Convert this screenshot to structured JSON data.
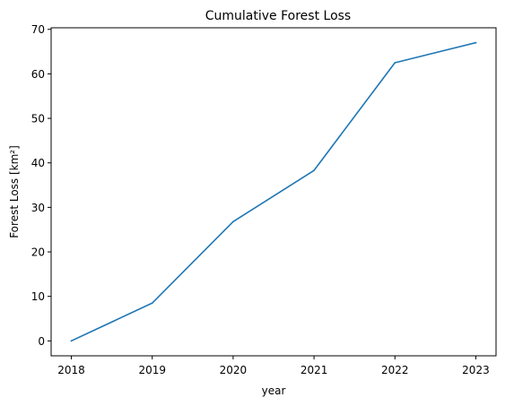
{
  "chart_data": {
    "type": "line",
    "title": "Cumulative Forest Loss",
    "xlabel": "year",
    "ylabel": "Forest Loss [km²]",
    "x": [
      2018,
      2019,
      2020,
      2021,
      2022,
      2023
    ],
    "x_ticks": [
      "2018",
      "2019",
      "2020",
      "2021",
      "2022",
      "2023"
    ],
    "y_ticks": [
      0,
      10,
      20,
      30,
      40,
      50,
      60,
      70
    ],
    "ylim": [
      -3.35,
      70.35
    ],
    "xlim": [
      2017.75,
      2023.25
    ],
    "grid": false,
    "series": [
      {
        "values": [
          0,
          8.5,
          26.8,
          38.3,
          62.5,
          67.0
        ],
        "color": "#1f77b4"
      }
    ]
  }
}
